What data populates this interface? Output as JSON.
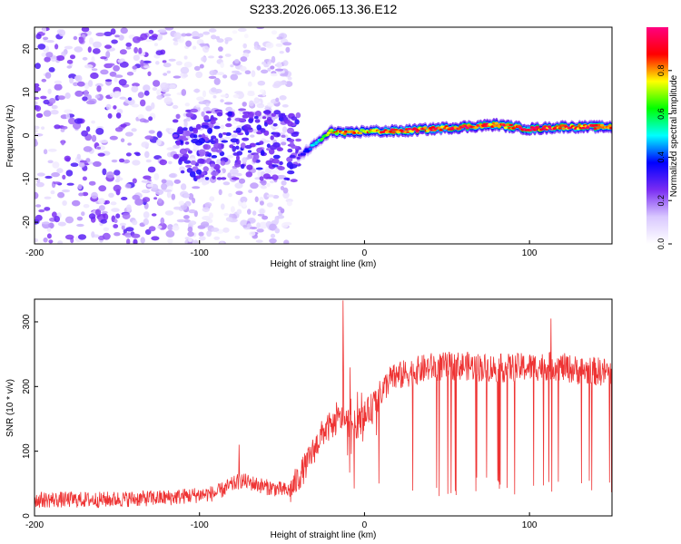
{
  "title": "S233.2026.065.13.36.E12",
  "chart_data": [
    {
      "type": "heatmap",
      "name": "spectrogram",
      "xlabel": "Height of straight line (km)",
      "ylabel": "Frequency (Hz)",
      "xlim": [
        -200,
        150
      ],
      "ylim": [
        -25,
        25
      ],
      "xticks": [
        -200,
        -100,
        0,
        100
      ],
      "yticks": [
        -20,
        -10,
        0,
        10,
        20
      ],
      "colorbar": {
        "label": "Normalized spectral amplitude",
        "range": [
          0,
          1
        ],
        "ticks": [
          0.0,
          0.2,
          0.4,
          0.6,
          0.8
        ],
        "tick_labels": [
          "0.0",
          "0.2",
          "0.4",
          "0.6",
          "0.8"
        ],
        "colors": [
          "#ffffff",
          "#d9c8ff",
          "#7a2cf2",
          "#0000ff",
          "#00ffff",
          "#00ff00",
          "#ffff00",
          "#ff0000",
          "#ff0080"
        ]
      },
      "ridge": {
        "description": "bright tone near 0-3 Hz from about -30 km to 150 km",
        "x": [
          -40,
          -30,
          -20,
          -10,
          0,
          20,
          40,
          60,
          80,
          100,
          120,
          150
        ],
        "freq_hz": [
          -5,
          -2,
          1,
          0.5,
          1,
          1,
          1.5,
          2,
          2.5,
          1.5,
          2,
          2
        ],
        "amplitude": [
          0.3,
          0.5,
          0.7,
          0.9,
          0.75,
          0.9,
          0.85,
          0.9,
          0.85,
          0.9,
          0.85,
          0.85
        ]
      },
      "noise_region": {
        "x_range": [
          -200,
          -45
        ],
        "typical_amplitude": 0.2
      }
    },
    {
      "type": "line",
      "name": "snr",
      "xlabel": "Height of straight line (km)",
      "ylabel": "SNR (10 * v/v)",
      "xlim": [
        -200,
        150
      ],
      "ylim": [
        0,
        335
      ],
      "xticks": [
        -200,
        -100,
        0,
        100
      ],
      "yticks": [
        0,
        100,
        200,
        300
      ],
      "color": "#ee3333",
      "envelope": {
        "x": [
          -200,
          -160,
          -120,
          -90,
          -75,
          -60,
          -45,
          -35,
          -25,
          -15,
          -5,
          5,
          15,
          25,
          40,
          60,
          80,
          100,
          115,
          130,
          150
        ],
        "y": [
          25,
          25,
          28,
          35,
          55,
          45,
          38,
          80,
          130,
          150,
          140,
          170,
          210,
          220,
          230,
          232,
          228,
          230,
          232,
          225,
          222
        ]
      },
      "spikes": [
        {
          "x": -76,
          "y": 110
        },
        {
          "x": -13,
          "y": 333
        },
        {
          "x": 113,
          "y": 305
        }
      ]
    }
  ]
}
